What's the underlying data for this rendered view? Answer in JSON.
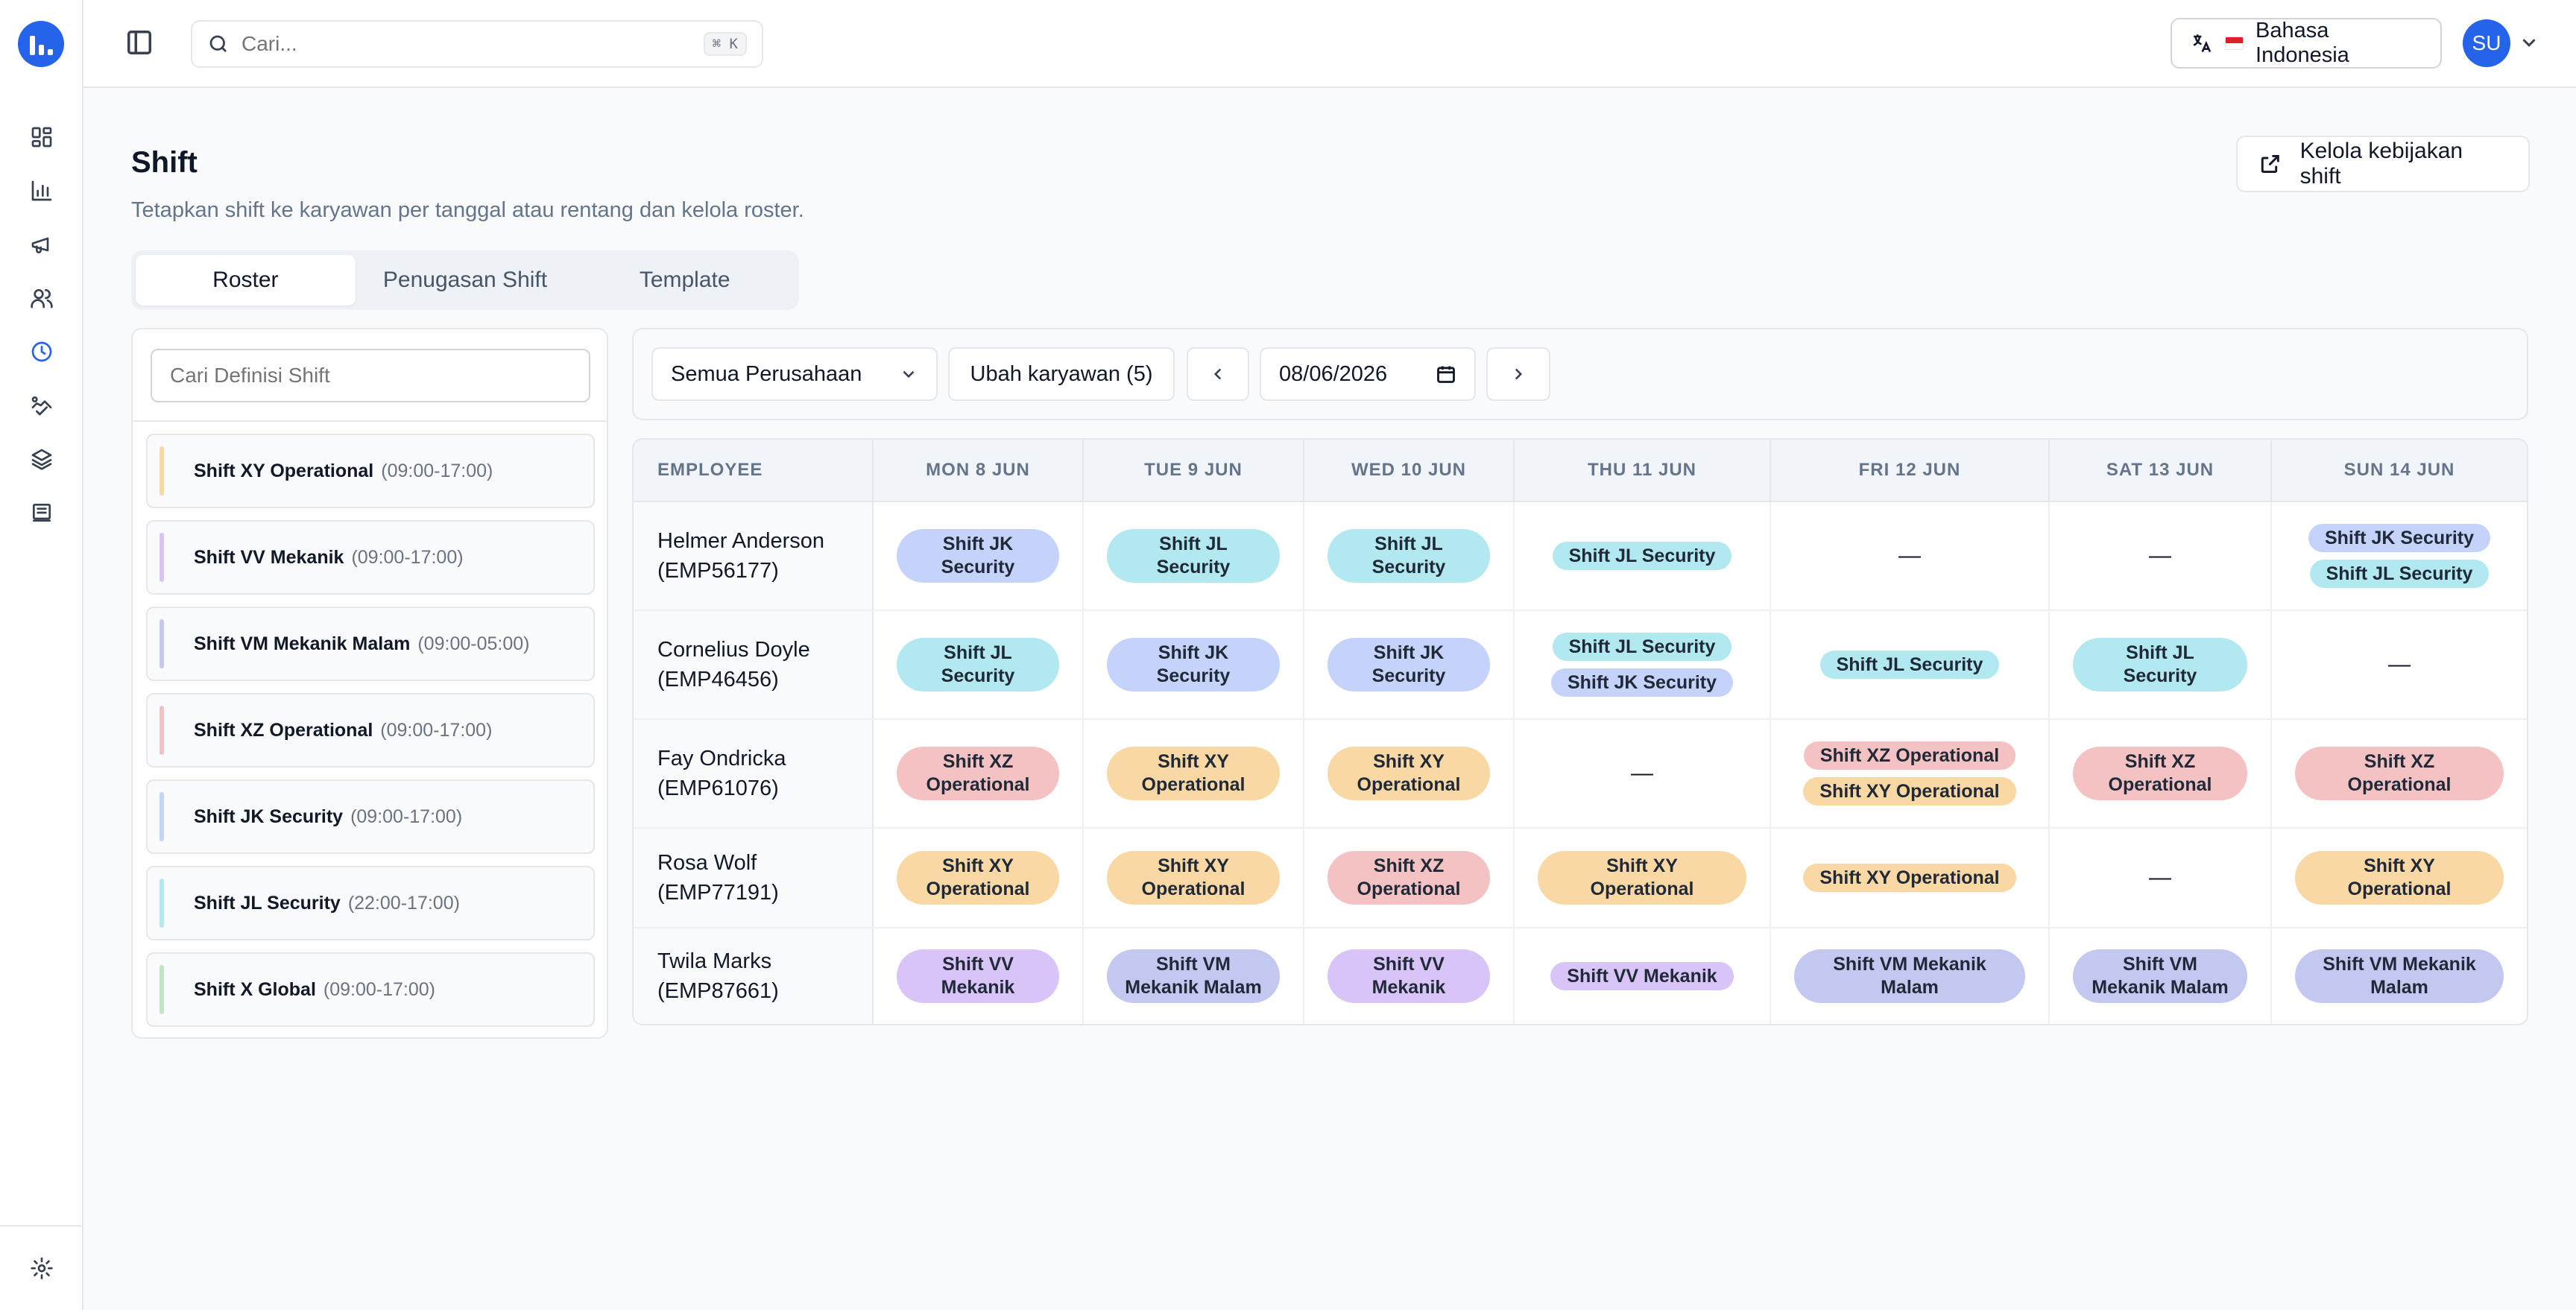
{
  "topbar": {
    "search_placeholder": "Cari...",
    "shortcut": "⌘ K",
    "language": "Bahasa Indonesia",
    "avatar_initials": "SU"
  },
  "header": {
    "title": "Shift",
    "subtitle": "Tetapkan shift ke karyawan per tanggal atau rentang dan kelola roster.",
    "manage_button": "Kelola kebijakan shift"
  },
  "tabs": [
    "Roster",
    "Penugasan Shift",
    "Template"
  ],
  "definitions": {
    "search_placeholder": "Cari Definisi Shift",
    "items": [
      {
        "name": "Shift XY Operational",
        "time": "(09:00-17:00)",
        "color": "#f9d8a4"
      },
      {
        "name": "Shift VV Mekanik",
        "time": "(09:00-17:00)",
        "color": "#d8c4f7"
      },
      {
        "name": "Shift VM Mekanik Malam",
        "time": "(09:00-05:00)",
        "color": "#c3c8f0"
      },
      {
        "name": "Shift XZ Operational",
        "time": "(09:00-17:00)",
        "color": "#f4c2c3"
      },
      {
        "name": "Shift JK Security",
        "time": "(09:00-17:00)",
        "color": "#c5d3fb"
      },
      {
        "name": "Shift JL Security",
        "time": "(22:00-17:00)",
        "color": "#b2e8f0"
      },
      {
        "name": "Shift X Global",
        "time": "(09:00-17:00)",
        "color": "#bfe6c9"
      }
    ]
  },
  "toolbar": {
    "company": "Semua Perusahaan",
    "change_employees": "Ubah karyawan (5)",
    "date": "08/06/2026"
  },
  "grid": {
    "employee_header": "EMPLOYEE",
    "days": [
      "MON 8 JUN",
      "TUE 9 JUN",
      "WED 10 JUN",
      "THU 11 JUN",
      "FRI 12 JUN",
      "SAT 13 JUN",
      "SUN 14 JUN"
    ],
    "empty": "—",
    "rows": [
      {
        "name": "Helmer Anderson",
        "id": "(EMP56177)",
        "cells": [
          [
            {
              "l1": "Shift JK",
              "l2": "Security",
              "c": "jk"
            }
          ],
          [
            {
              "l1": "Shift JL",
              "l2": "Security",
              "c": "jl"
            }
          ],
          [
            {
              "l1": "Shift JL",
              "l2": "Security",
              "c": "jl"
            }
          ],
          [
            {
              "l1": "Shift JL Security",
              "c": "jl"
            }
          ],
          [],
          [],
          [
            {
              "l1": "Shift JK Security",
              "c": "jk"
            },
            {
              "l1": "Shift JL Security",
              "c": "jl"
            }
          ]
        ]
      },
      {
        "name": "Cornelius Doyle",
        "id": "(EMP46456)",
        "cells": [
          [
            {
              "l1": "Shift JL",
              "l2": "Security",
              "c": "jl"
            }
          ],
          [
            {
              "l1": "Shift JK",
              "l2": "Security",
              "c": "jk"
            }
          ],
          [
            {
              "l1": "Shift JK",
              "l2": "Security",
              "c": "jk"
            }
          ],
          [
            {
              "l1": "Shift JL Security",
              "c": "jl"
            },
            {
              "l1": "Shift JK Security",
              "c": "jk"
            }
          ],
          [
            {
              "l1": "Shift JL Security",
              "c": "jl"
            }
          ],
          [
            {
              "l1": "Shift JL",
              "l2": "Security",
              "c": "jl"
            }
          ],
          []
        ]
      },
      {
        "name": "Fay Ondricka",
        "id": "(EMP61076)",
        "cells": [
          [
            {
              "l1": "Shift XZ",
              "l2": "Operational",
              "c": "xz"
            }
          ],
          [
            {
              "l1": "Shift XY",
              "l2": "Operational",
              "c": "xy"
            }
          ],
          [
            {
              "l1": "Shift XY",
              "l2": "Operational",
              "c": "xy"
            }
          ],
          [],
          [
            {
              "l1": "Shift XZ Operational",
              "c": "xz"
            },
            {
              "l1": "Shift XY Operational",
              "c": "xy"
            }
          ],
          [
            {
              "l1": "Shift XZ",
              "l2": "Operational",
              "c": "xz"
            }
          ],
          [
            {
              "l1": "Shift XZ",
              "l2": "Operational",
              "c": "xz"
            }
          ]
        ]
      },
      {
        "name": "Rosa Wolf",
        "id": "(EMP77191)",
        "cells": [
          [
            {
              "l1": "Shift XY",
              "l2": "Operational",
              "c": "xy"
            }
          ],
          [
            {
              "l1": "Shift XY",
              "l2": "Operational",
              "c": "xy"
            }
          ],
          [
            {
              "l1": "Shift XZ",
              "l2": "Operational",
              "c": "xz"
            }
          ],
          [
            {
              "l1": "Shift XY",
              "l2": "Operational",
              "c": "xy"
            }
          ],
          [
            {
              "l1": "Shift XY Operational",
              "c": "xy"
            }
          ],
          [],
          [
            {
              "l1": "Shift XY",
              "l2": "Operational",
              "c": "xy"
            }
          ]
        ]
      },
      {
        "name": "Twila Marks",
        "id": "(EMP87661)",
        "cells": [
          [
            {
              "l1": "Shift VV",
              "l2": "Mekanik",
              "c": "vv"
            }
          ],
          [
            {
              "l1": "Shift VM",
              "l2": "Mekanik Malam",
              "c": "vm"
            }
          ],
          [
            {
              "l1": "Shift VV",
              "l2": "Mekanik",
              "c": "vv"
            }
          ],
          [
            {
              "l1": "Shift VV Mekanik",
              "c": "vv"
            }
          ],
          [
            {
              "l1": "Shift VM Mekanik",
              "l2": "Malam",
              "c": "vm"
            }
          ],
          [
            {
              "l1": "Shift VM",
              "l2": "Mekanik Malam",
              "c": "vm"
            }
          ],
          [
            {
              "l1": "Shift VM Mekanik",
              "l2": "Malam",
              "c": "vm"
            }
          ]
        ]
      }
    ]
  }
}
